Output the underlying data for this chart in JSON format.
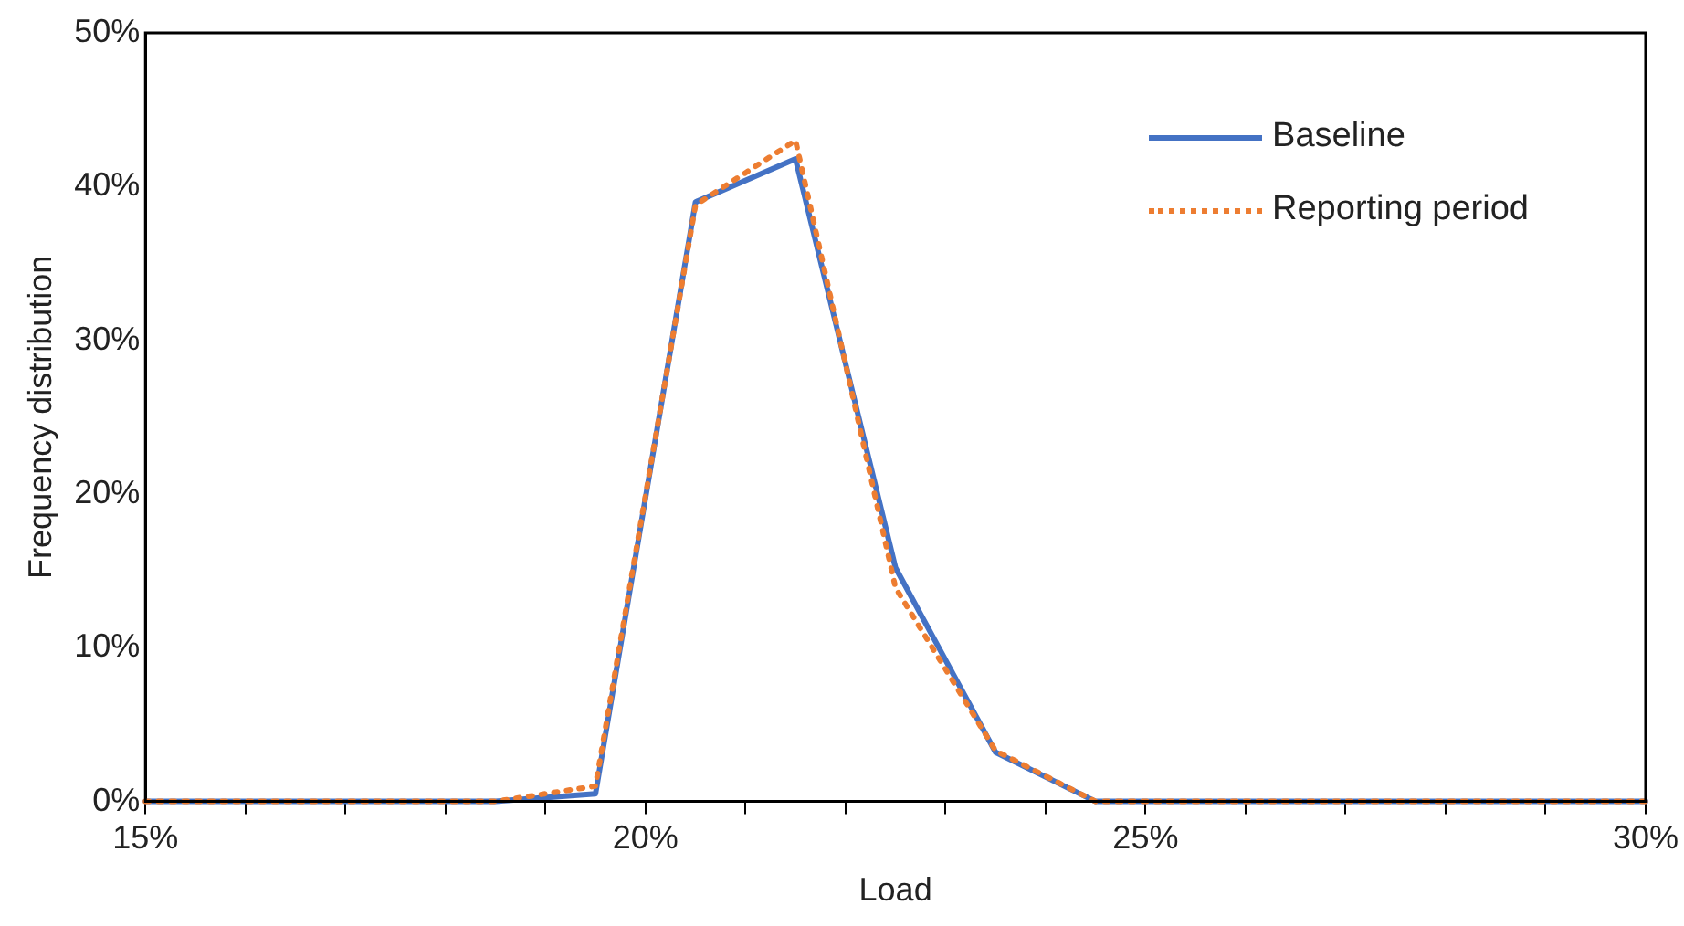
{
  "chart_data": {
    "type": "line",
    "xlabel": "Load",
    "ylabel": "Frequency distribution",
    "x": [
      15,
      15.5,
      16.5,
      17.5,
      18.5,
      19.5,
      20.5,
      21.5,
      22.5,
      23.5,
      24.5,
      25.5,
      26.5,
      27.5,
      28.5,
      29.5,
      30
    ],
    "series": [
      {
        "name": "Baseline",
        "color": "#4472c4",
        "line_style": "solid",
        "values": [
          0,
          0,
          0,
          0,
          0,
          0.5,
          39,
          41.8,
          15.2,
          3.2,
          0,
          0,
          0,
          0,
          0,
          0,
          0
        ]
      },
      {
        "name": "Reporting period",
        "color": "#ed7d31",
        "line_style": "dotted",
        "values": [
          0,
          0,
          0,
          0,
          0,
          1,
          38.8,
          43,
          13.9,
          3.3,
          0,
          0,
          0,
          0,
          0,
          0,
          0
        ]
      }
    ],
    "xlim": [
      15,
      30
    ],
    "xticks": [
      {
        "value": 15,
        "label": "15%"
      },
      {
        "value": 16,
        "label": null
      },
      {
        "value": 17,
        "label": null
      },
      {
        "value": 18,
        "label": null
      },
      {
        "value": 19,
        "label": null
      },
      {
        "value": 20,
        "label": "20%"
      },
      {
        "value": 21,
        "label": null
      },
      {
        "value": 22,
        "label": null
      },
      {
        "value": 23,
        "label": null
      },
      {
        "value": 24,
        "label": null
      },
      {
        "value": 25,
        "label": "25%"
      },
      {
        "value": 26,
        "label": null
      },
      {
        "value": 27,
        "label": null
      },
      {
        "value": 28,
        "label": null
      },
      {
        "value": 29,
        "label": null
      },
      {
        "value": 30,
        "label": "30%"
      }
    ],
    "ylim": [
      0,
      50
    ],
    "yticks": [
      {
        "value": 0,
        "label": "0%"
      },
      {
        "value": 10,
        "label": "10%"
      },
      {
        "value": 20,
        "label": "20%"
      },
      {
        "value": 30,
        "label": "30%"
      },
      {
        "value": 40,
        "label": "40%"
      },
      {
        "value": 50,
        "label": "50%"
      }
    ],
    "grid": false,
    "legend": "top right",
    "marker": "none"
  }
}
